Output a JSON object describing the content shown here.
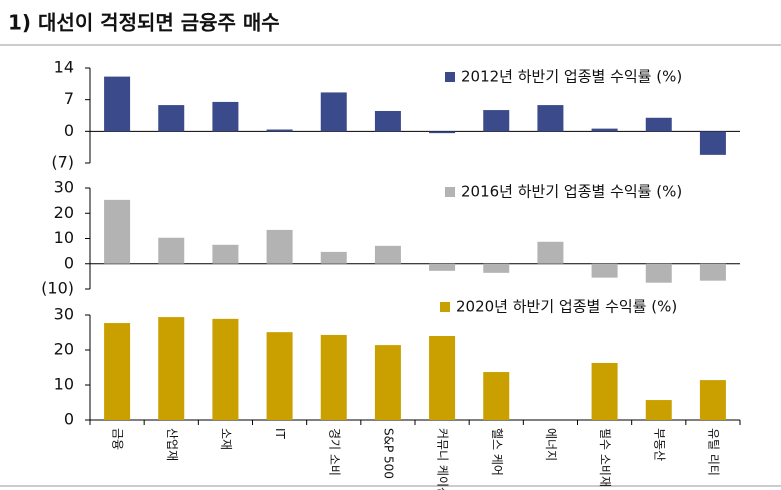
{
  "title": "1) 대선이 걱정되면 금융주 매수",
  "chart_data": [
    {
      "type": "bar",
      "ylim": [
        -7,
        14
      ],
      "yticks": [
        14,
        7,
        0,
        {
          "value": -7,
          "label": "(7)"
        }
      ],
      "series": [
        {
          "name": "2012년 하반기 업종별 수익률 (%)",
          "color": "#3b4a8a",
          "values": [
            12.1,
            5.8,
            6.5,
            0.4,
            8.6,
            4.5,
            -0.4,
            4.7,
            5.8,
            0.6,
            3.0,
            -5.2
          ]
        }
      ]
    },
    {
      "type": "bar",
      "ylim": [
        -10,
        30
      ],
      "yticks": [
        30,
        20,
        10,
        0,
        {
          "value": -10,
          "label": "(10)"
        }
      ],
      "series": [
        {
          "name": "2016년 하반기 업종별 수익률 (%)",
          "color": "#b3b3b3",
          "values": [
            25.3,
            10.3,
            7.5,
            13.4,
            4.7,
            7.1,
            -2.8,
            -3.6,
            8.7,
            -5.5,
            -7.5,
            -6.7
          ]
        }
      ]
    },
    {
      "type": "bar",
      "ylim": [
        0,
        30
      ],
      "yticks": [
        30,
        20,
        10,
        0
      ],
      "categories": [
        "금융",
        "산업재",
        "소재",
        "IT",
        "경기 소비",
        "S&P 500",
        "커뮤니 케이션",
        "헬스 케어",
        "에너지",
        "필수 소비재",
        "부동산",
        "유틸 리티"
      ],
      "series": [
        {
          "name": "2020년 하반기 업종별 수익률 (%)",
          "color": "#c9a000",
          "values": [
            27.7,
            29.4,
            28.9,
            25.1,
            24.3,
            21.4,
            24.0,
            13.7,
            null,
            16.3,
            5.7,
            11.4
          ]
        }
      ]
    }
  ]
}
